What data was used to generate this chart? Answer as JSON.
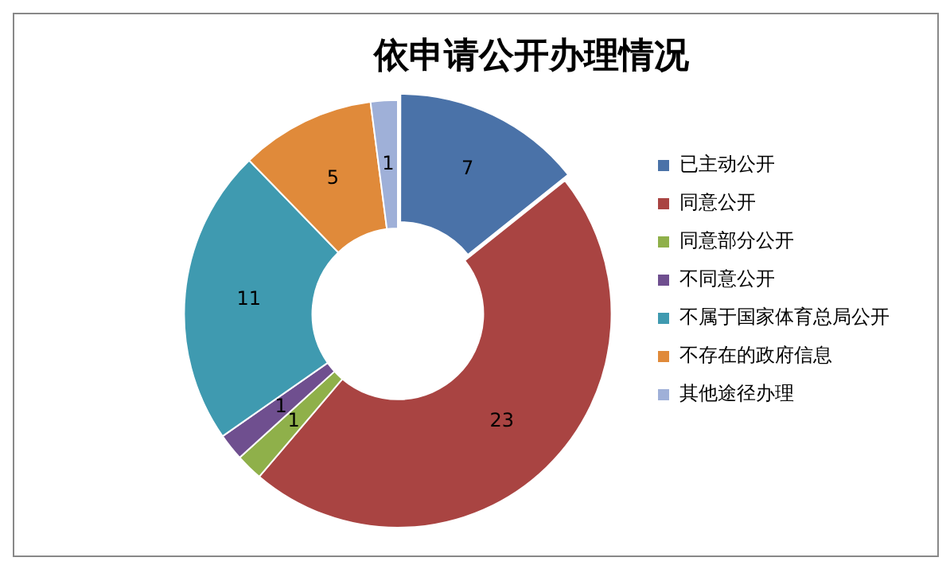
{
  "chart_data": {
    "type": "donut",
    "title": "依申请公开办理情况",
    "categories": [
      "已主动公开",
      "同意公开",
      "同意部分公开",
      "不同意公开",
      "不属于国家体育总局公开",
      "不存在的政府信息",
      "其他途径办理"
    ],
    "values": [
      7,
      23,
      1,
      1,
      11,
      5,
      1
    ],
    "colors": [
      "#4a72a8",
      "#a94442",
      "#8fb04a",
      "#6f4f8f",
      "#3f9ab0",
      "#e08a3a",
      "#9fb0d8"
    ],
    "data_labels": true,
    "legend": "right"
  }
}
